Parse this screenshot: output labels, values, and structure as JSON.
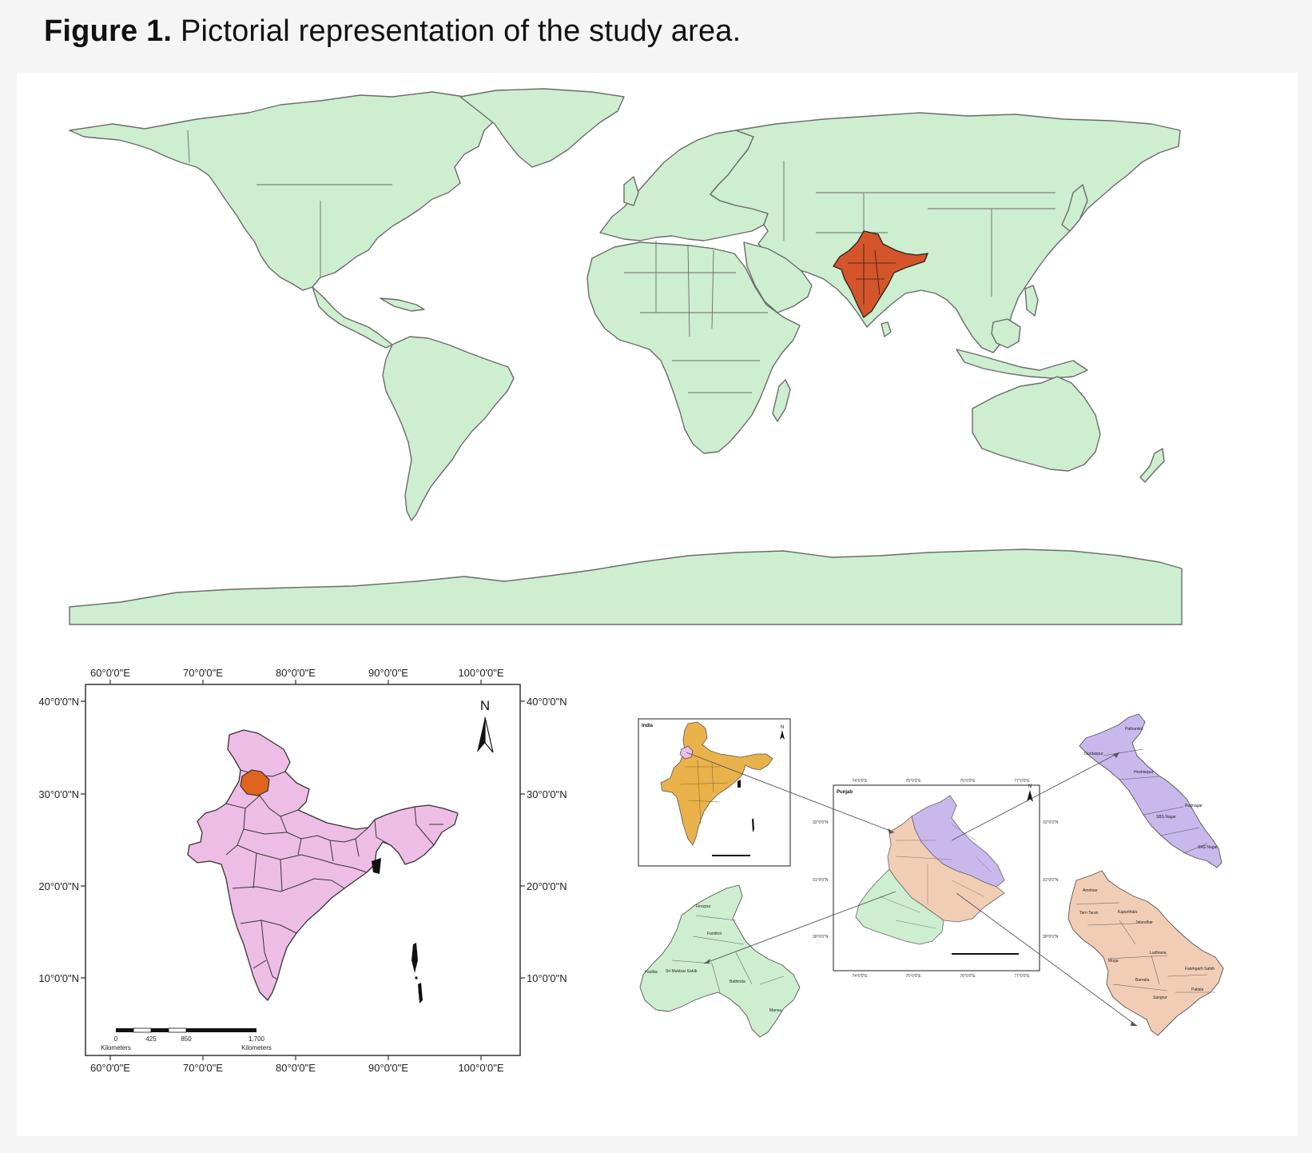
{
  "figure": {
    "label": "Figure 1.",
    "title": "Pictorial representation of the study area."
  },
  "colors": {
    "land": "#cdeecf",
    "land_stroke": "#6b6b6b",
    "india_highlight": "#d4552a",
    "india_pink": "#eebde6",
    "punjab_orange": "#e0641f",
    "inset_yellow": "#eab24a",
    "region_purple": "#c9b8ec",
    "region_peach": "#f2cdb6",
    "region_green": "#cdeecf"
  },
  "india_map": {
    "top_ticks": [
      "60°0'0\"E",
      "70°0'0\"E",
      "80°0'0\"E",
      "90°0'0\"E",
      "100°0'0\"E"
    ],
    "bottom_ticks": [
      "60°0'0\"E",
      "70°0'0\"E",
      "80°0'0\"E",
      "90°0'0\"E",
      "100°0'0\"E"
    ],
    "left_ticks": [
      "40°0'0\"N",
      "30°0'0\"N",
      "20°0'0\"N",
      "10°0'0\"N"
    ],
    "right_ticks": [
      "40°0'0\"N",
      "30°0'0\"N",
      "20°0'0\"N",
      "10°0'0\"N"
    ],
    "north": "N",
    "scale_labels": [
      "0",
      "425",
      "850",
      "1,700"
    ],
    "scale_unit_left": "Kilometers",
    "scale_unit_right": "Kilometers"
  },
  "locator": {
    "inset_title": "India",
    "punjab_title": "Punjab",
    "punjab_top_ticks": [
      "74°0'0\"E",
      "75°0'0\"E",
      "76°0'0\"E",
      "77°0'0\"E"
    ],
    "punjab_bottom_ticks": [
      "74°0'0\"E",
      "75°0'0\"E",
      "76°0'0\"E",
      "77°0'0\"E"
    ],
    "punjab_left_ticks": [
      "32°0'0\"N",
      "31°0'0\"N",
      "30°0'0\"N"
    ],
    "punjab_right_ticks": [
      "32°0'0\"N",
      "31°0'0\"N",
      "30°0'0\"N"
    ],
    "north": "N",
    "north_district_labels": [
      "Pathankot",
      "Gurdaspur",
      "Hoshiarpur",
      "Rupnagar",
      "SBS Nagar",
      "SAS Nagar"
    ],
    "west_district_labels": [
      "Firozpur",
      "Faridkot",
      "Fazilka",
      "Sri Muktsar Sahib",
      "Bathinda",
      "Mansa"
    ],
    "central_district_labels": [
      "Amritsar",
      "Tarn Taran",
      "Kapurthala",
      "Jalandhar",
      "Ludhiana",
      "Moga",
      "Fatehgarh Sahib",
      "Barnala",
      "Patiala",
      "Sangrur"
    ]
  }
}
